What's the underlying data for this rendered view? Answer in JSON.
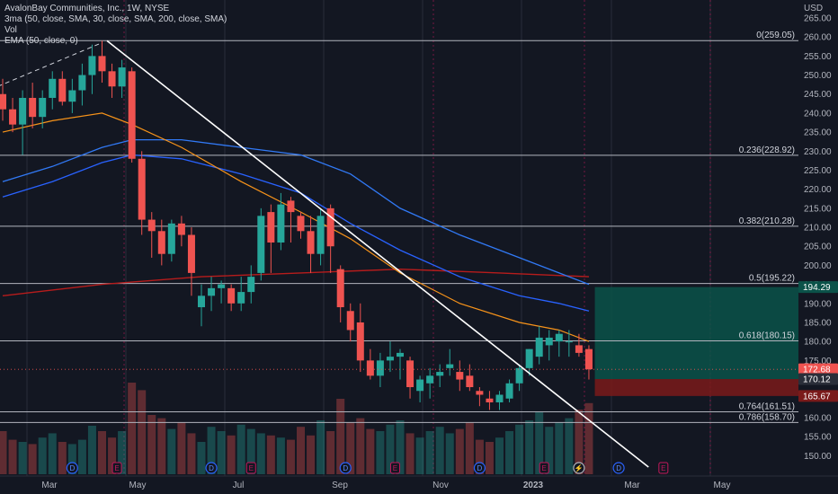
{
  "legend": {
    "title": "AvalonBay Communities, Inc., 1W, NYSE",
    "ind1": "3ma (50, close, SMA, 30, close, SMA, 200, close, SMA)",
    "ind2": "Vol",
    "ind3": "EMA (50, close, 0)"
  },
  "colors": {
    "background": "#131722",
    "up": "#26a69a",
    "down": "#ef5350",
    "ema": "#f7931a",
    "sma30": "#2962ff",
    "sma50": "#3179f5",
    "sma200": "#b71c1c",
    "fib": "#b2b5be",
    "trendline": "#ffffff",
    "profit_zone": "#0b5249",
    "loss_zone": "#7a1a1a"
  },
  "chart_data": {
    "type": "candlestick",
    "title": "AvalonBay Communities, Inc., 1W, NYSE",
    "currency": "USD",
    "ylim": [
      147,
      265
    ],
    "y_ticks": [
      150,
      155,
      160,
      165,
      170,
      175,
      180,
      185,
      190,
      195,
      200,
      205,
      210,
      215,
      220,
      225,
      230,
      235,
      240,
      245,
      250,
      255,
      260,
      265
    ],
    "x_tick_labels": [
      "Mar",
      "May",
      "Jul",
      "Sep",
      "Nov",
      "2023",
      "Mar",
      "May"
    ],
    "candles": [
      {
        "o": 245,
        "h": 249,
        "l": 238,
        "c": 241
      },
      {
        "o": 241,
        "h": 244,
        "l": 235,
        "c": 237
      },
      {
        "o": 237,
        "h": 246,
        "l": 229,
        "c": 244
      },
      {
        "o": 244,
        "h": 248,
        "l": 236,
        "c": 239
      },
      {
        "o": 239,
        "h": 246,
        "l": 236,
        "c": 244
      },
      {
        "o": 244,
        "h": 251,
        "l": 241,
        "c": 249
      },
      {
        "o": 249,
        "h": 251,
        "l": 242,
        "c": 243
      },
      {
        "o": 243,
        "h": 249,
        "l": 240,
        "c": 246
      },
      {
        "o": 246,
        "h": 253,
        "l": 242,
        "c": 250
      },
      {
        "o": 250,
        "h": 258,
        "l": 245,
        "c": 255
      },
      {
        "o": 255,
        "h": 259,
        "l": 248,
        "c": 251
      },
      {
        "o": 251,
        "h": 253,
        "l": 244,
        "c": 247
      },
      {
        "o": 247,
        "h": 254,
        "l": 244,
        "c": 252
      },
      {
        "o": 251,
        "h": 252,
        "l": 227,
        "c": 228
      },
      {
        "o": 228,
        "h": 230,
        "l": 208,
        "c": 212
      },
      {
        "o": 212,
        "h": 214,
        "l": 202,
        "c": 209
      },
      {
        "o": 209,
        "h": 212,
        "l": 200,
        "c": 203
      },
      {
        "o": 203,
        "h": 212,
        "l": 201,
        "c": 211
      },
      {
        "o": 211,
        "h": 213,
        "l": 205,
        "c": 208
      },
      {
        "o": 208,
        "h": 210,
        "l": 192,
        "c": 198
      },
      {
        "o": 189,
        "h": 195,
        "l": 184,
        "c": 192
      },
      {
        "o": 192,
        "h": 197,
        "l": 188,
        "c": 194
      },
      {
        "o": 194,
        "h": 196,
        "l": 190,
        "c": 195
      },
      {
        "o": 194,
        "h": 195,
        "l": 188,
        "c": 190
      },
      {
        "o": 190,
        "h": 197,
        "l": 188,
        "c": 193
      },
      {
        "o": 193,
        "h": 200,
        "l": 190,
        "c": 197
      },
      {
        "o": 198,
        "h": 215,
        "l": 196,
        "c": 213
      },
      {
        "o": 214,
        "h": 216,
        "l": 198,
        "c": 206
      },
      {
        "o": 206,
        "h": 219,
        "l": 204,
        "c": 216
      },
      {
        "o": 217,
        "h": 218,
        "l": 206,
        "c": 214
      },
      {
        "o": 213,
        "h": 214,
        "l": 207,
        "c": 209
      },
      {
        "o": 209,
        "h": 213,
        "l": 198,
        "c": 203
      },
      {
        "o": 203,
        "h": 215,
        "l": 200,
        "c": 213
      },
      {
        "o": 215,
        "h": 216,
        "l": 198,
        "c": 205
      },
      {
        "o": 199,
        "h": 200,
        "l": 185,
        "c": 189
      },
      {
        "o": 188,
        "h": 190,
        "l": 180,
        "c": 183
      },
      {
        "o": 185,
        "h": 190,
        "l": 172,
        "c": 175
      },
      {
        "o": 175,
        "h": 178,
        "l": 170,
        "c": 171
      },
      {
        "o": 171,
        "h": 177,
        "l": 168,
        "c": 175
      },
      {
        "o": 175,
        "h": 180,
        "l": 172,
        "c": 176
      },
      {
        "o": 176,
        "h": 178,
        "l": 170,
        "c": 177
      },
      {
        "o": 175,
        "h": 176,
        "l": 165,
        "c": 168
      },
      {
        "o": 167,
        "h": 171,
        "l": 164,
        "c": 170
      },
      {
        "o": 169,
        "h": 173,
        "l": 165,
        "c": 171
      },
      {
        "o": 171,
        "h": 174,
        "l": 168,
        "c": 172
      },
      {
        "o": 173,
        "h": 178,
        "l": 171,
        "c": 174
      },
      {
        "o": 172,
        "h": 175,
        "l": 167,
        "c": 170
      },
      {
        "o": 171,
        "h": 174,
        "l": 167,
        "c": 168
      },
      {
        "o": 167,
        "h": 168,
        "l": 163,
        "c": 166
      },
      {
        "o": 165,
        "h": 167,
        "l": 162,
        "c": 164
      },
      {
        "o": 164,
        "h": 167,
        "l": 162,
        "c": 166
      },
      {
        "o": 165,
        "h": 170,
        "l": 164,
        "c": 169
      },
      {
        "o": 169,
        "h": 174,
        "l": 167,
        "c": 173
      },
      {
        "o": 173,
        "h": 178,
        "l": 171,
        "c": 178
      },
      {
        "o": 176,
        "h": 184,
        "l": 174,
        "c": 181
      },
      {
        "o": 179,
        "h": 183,
        "l": 175,
        "c": 181
      },
      {
        "o": 180,
        "h": 183,
        "l": 176,
        "c": 182
      },
      {
        "o": 180,
        "h": 183,
        "l": 176,
        "c": 180
      },
      {
        "o": 179,
        "h": 182,
        "l": 176,
        "c": 177
      },
      {
        "o": 178,
        "h": 179,
        "l": 170,
        "c": 172.68
      }
    ],
    "volume": [
      40,
      32,
      30,
      28,
      34,
      38,
      30,
      28,
      32,
      45,
      40,
      34,
      40,
      85,
      78,
      55,
      52,
      42,
      48,
      38,
      30,
      44,
      40,
      36,
      46,
      42,
      38,
      36,
      34,
      32,
      44,
      36,
      50,
      40,
      70,
      48,
      52,
      42,
      40,
      46,
      50,
      38,
      34,
      40,
      44,
      38,
      42,
      48,
      32,
      30,
      34,
      40,
      46,
      50,
      58,
      44,
      48,
      52,
      60,
      66
    ],
    "ema50": [
      [
        0,
        235
      ],
      [
        5,
        238
      ],
      [
        10,
        240
      ],
      [
        13,
        237
      ],
      [
        18,
        231
      ],
      [
        24,
        222
      ],
      [
        30,
        214
      ],
      [
        35,
        207
      ],
      [
        40,
        198
      ],
      [
        46,
        190
      ],
      [
        52,
        185
      ],
      [
        56,
        183
      ],
      [
        58,
        181
      ],
      [
        59,
        180
      ]
    ],
    "sma30": [
      [
        0,
        218
      ],
      [
        5,
        222
      ],
      [
        10,
        227
      ],
      [
        13,
        229
      ],
      [
        18,
        228
      ],
      [
        24,
        224
      ],
      [
        30,
        219
      ],
      [
        35,
        211
      ],
      [
        40,
        204
      ],
      [
        46,
        197
      ],
      [
        52,
        192
      ],
      [
        56,
        190
      ],
      [
        59,
        188
      ]
    ],
    "sma50": [
      [
        0,
        222
      ],
      [
        5,
        226
      ],
      [
        10,
        231
      ],
      [
        13,
        233
      ],
      [
        18,
        233
      ],
      [
        24,
        231
      ],
      [
        30,
        229
      ],
      [
        35,
        224
      ],
      [
        40,
        215
      ],
      [
        46,
        208
      ],
      [
        52,
        202
      ],
      [
        56,
        198
      ],
      [
        59,
        195
      ]
    ],
    "sma200": [
      [
        0,
        192
      ],
      [
        10,
        195
      ],
      [
        20,
        197
      ],
      [
        30,
        198
      ],
      [
        40,
        199
      ],
      [
        50,
        198
      ],
      [
        59,
        197
      ]
    ],
    "fib_levels": [
      {
        "label": "0(259.05)",
        "value": 259.05
      },
      {
        "label": "0.236(228.92)",
        "value": 228.92
      },
      {
        "label": "0.382(210.28)",
        "value": 210.28
      },
      {
        "label": "0.5(195.22)",
        "value": 195.22
      },
      {
        "label": "0.618(180.15)",
        "value": 180.15
      },
      {
        "label": "0.764(161.51)",
        "value": 161.51
      },
      {
        "label": "0.786(158.70)",
        "value": 158.7
      }
    ],
    "price_tags": [
      {
        "label": "194.29",
        "value": 194.29,
        "color": "#0b5249"
      },
      {
        "label": "172.68",
        "value": 172.68,
        "color": "#ef5350"
      },
      {
        "label": "170.12",
        "value": 170.12,
        "color": "#2a2e39"
      },
      {
        "label": "165.67",
        "value": 165.67,
        "color": "#7a1a1a"
      }
    ],
    "trendline": [
      [
        10.5,
        259
      ],
      [
        65,
        147
      ]
    ],
    "dashed_line": [
      [
        -0.5,
        247
      ],
      [
        10,
        258.5
      ]
    ],
    "position": {
      "entry": 170.12,
      "target": 194.29,
      "stop": 165.67,
      "start_index": 59.6
    },
    "events": [
      {
        "type": "D",
        "index": 7
      },
      {
        "type": "E",
        "index": 11.5
      },
      {
        "type": "D",
        "index": 21
      },
      {
        "type": "E",
        "index": 25
      },
      {
        "type": "D",
        "index": 34.5
      },
      {
        "type": "E",
        "index": 39.5
      },
      {
        "type": "D",
        "index": 48
      },
      {
        "type": "E",
        "index": 54.5
      },
      {
        "type": "⚡",
        "index": 58
      },
      {
        "type": "D",
        "index": 62
      },
      {
        "type": "E",
        "index": 66.5
      }
    ]
  }
}
